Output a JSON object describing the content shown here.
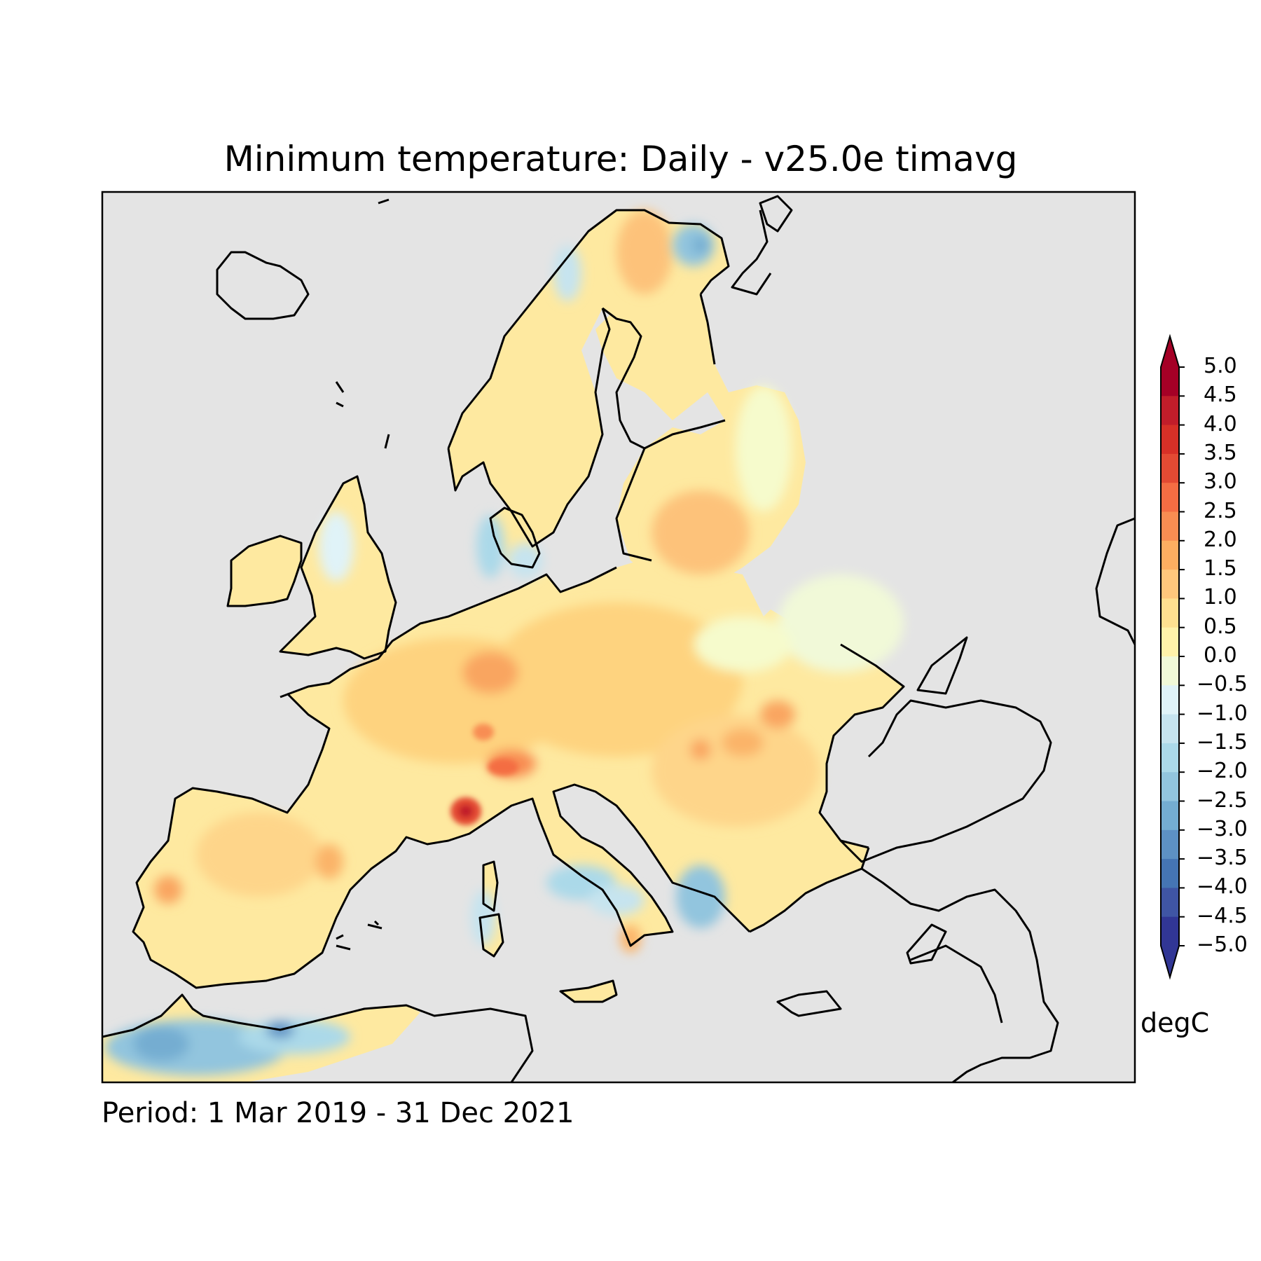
{
  "title": "Minimum temperature: Daily - v25.0e timavg",
  "period": "Period: 1 Mar 2019 - 31 Dec 2021",
  "colorbar": {
    "unit": "degC",
    "extend": "both",
    "ticks": [
      "5.0",
      "4.5",
      "4.0",
      "3.5",
      "3.0",
      "2.5",
      "2.0",
      "1.5",
      "1.0",
      "0.5",
      "0.0",
      "−0.5",
      "−1.0",
      "−1.5",
      "−2.0",
      "−2.5",
      "−3.0",
      "−3.5",
      "−4.0",
      "−4.5",
      "−5.0"
    ],
    "colors_top_to_bottom": [
      "#a50026",
      "#c11d2a",
      "#d73027",
      "#e34a33",
      "#f46d43",
      "#f88d52",
      "#fdae61",
      "#fec77c",
      "#fee090",
      "#fff2aa",
      "#ffffbf",
      "#f1f9d8",
      "#e0f3f8",
      "#c6e4ef",
      "#abd9e9",
      "#92c5de",
      "#74add1",
      "#5d91c4",
      "#4575b4",
      "#3f55a4",
      "#313695"
    ],
    "over_color": "#a50026",
    "under_color": "#313695"
  },
  "map": {
    "background_color": "#e4e4e4",
    "land_base_color": "#fee090"
  }
}
